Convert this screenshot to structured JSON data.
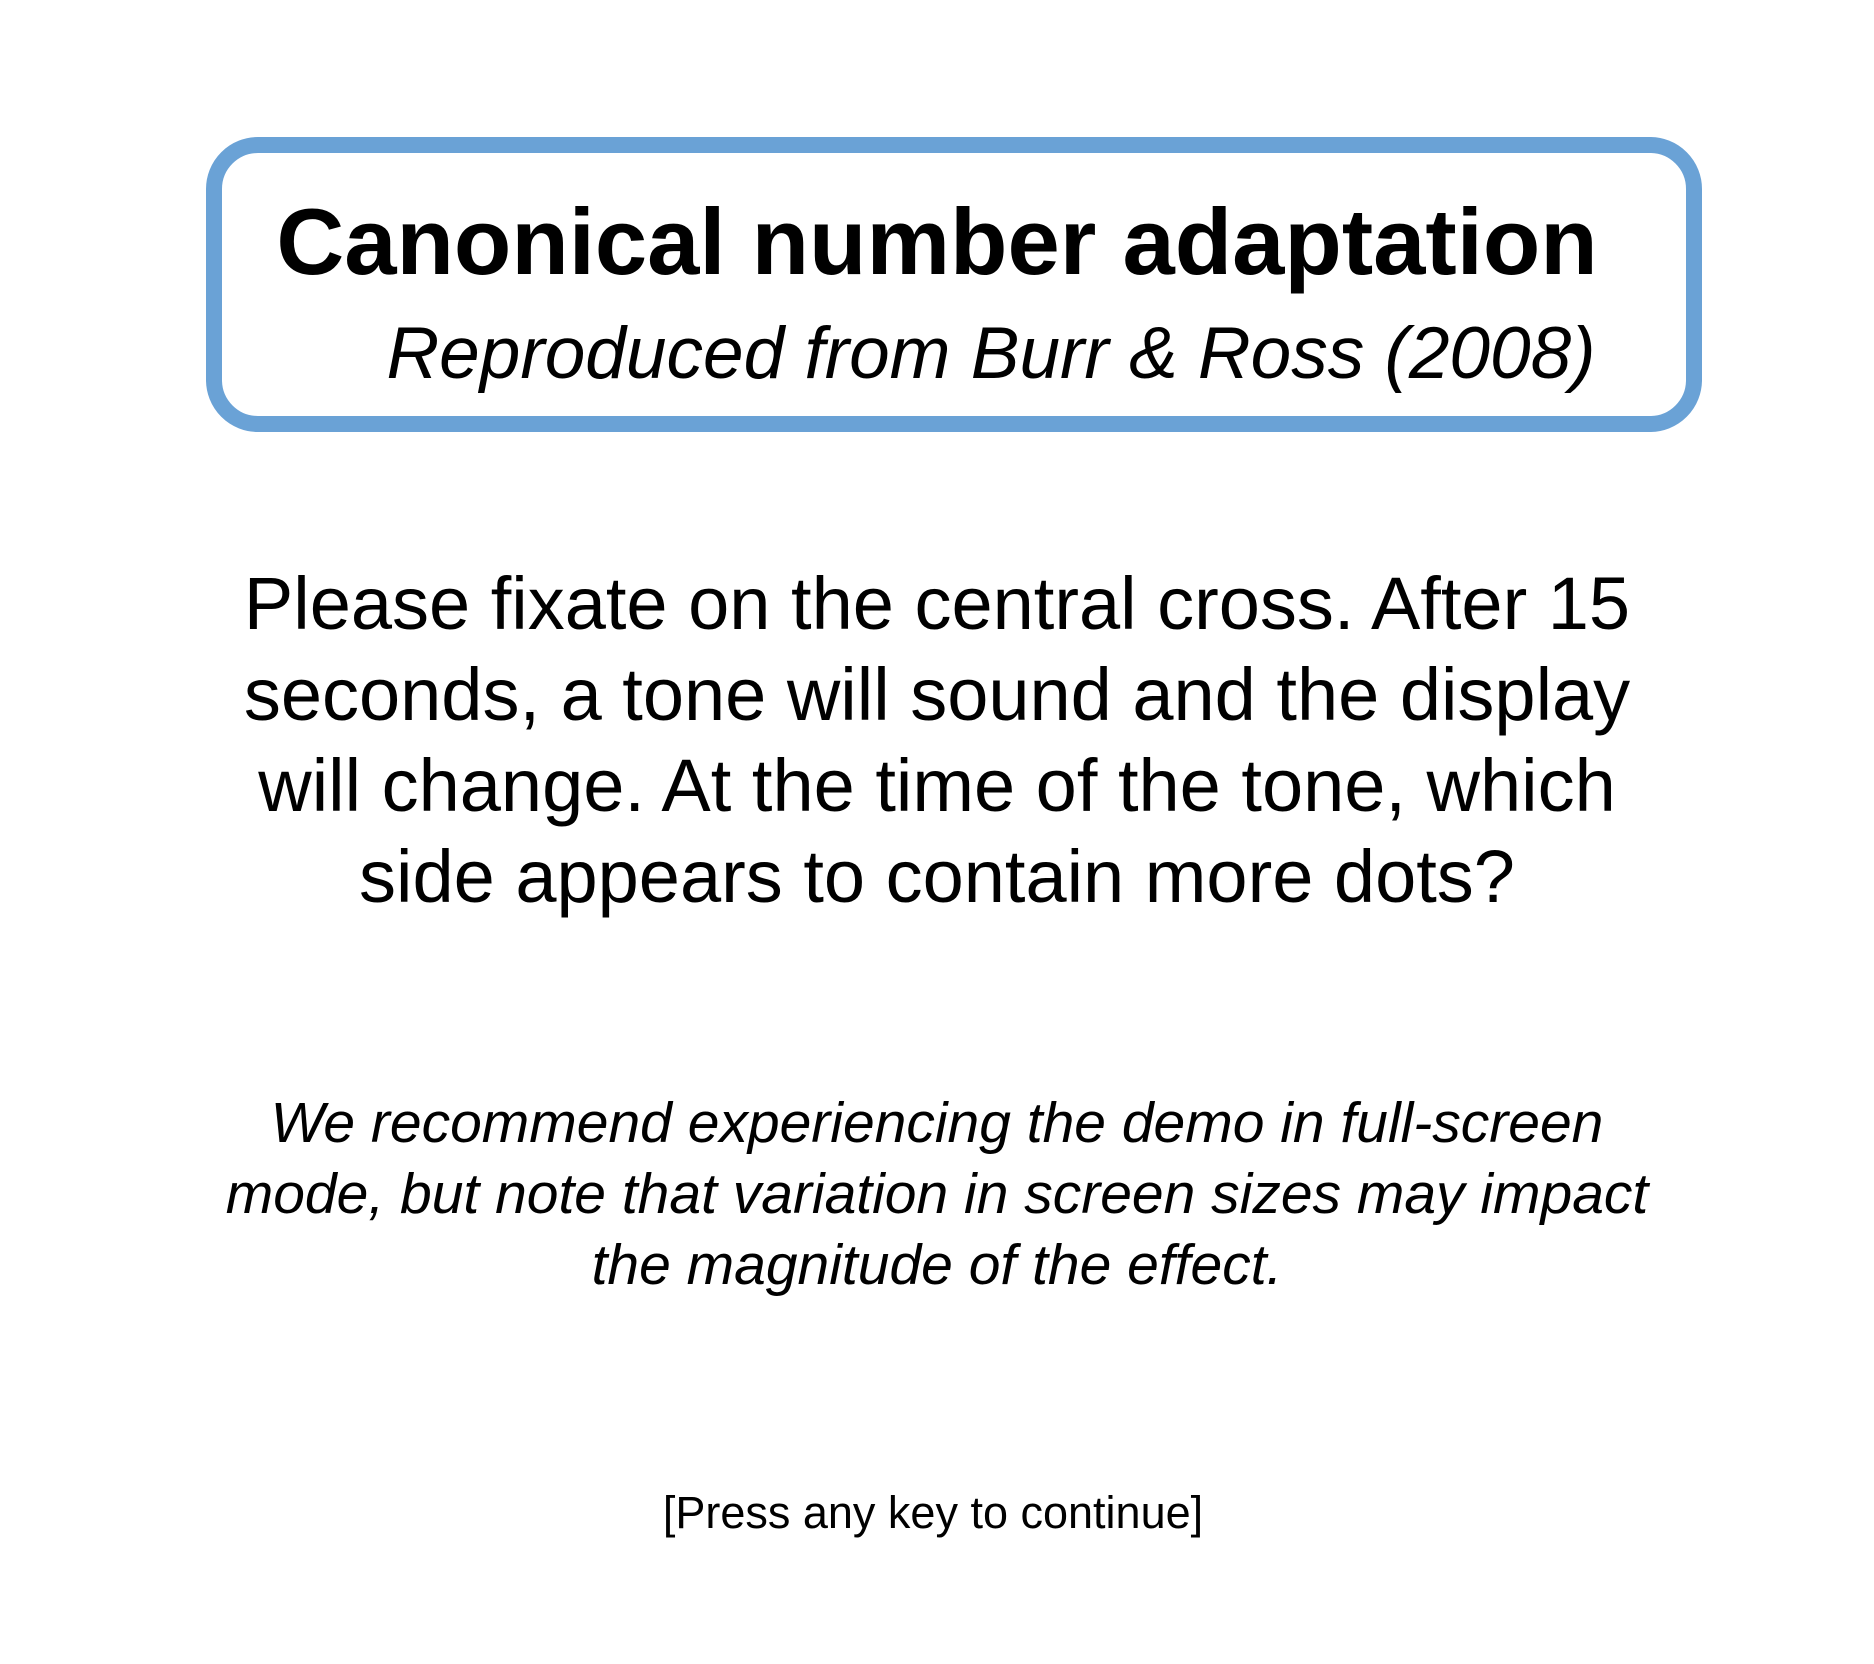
{
  "header": {
    "title": "Canonical number adaptation",
    "subtitle": "Reproduced from Burr & Ross (2008)",
    "border_color": "#6aa2d6"
  },
  "instructions": "Please fixate on the central cross. After 15 seconds, a tone will sound and the display will change. At the time of the tone, which side appears to contain more dots?",
  "note": "We recommend experiencing the demo in full-screen mode, but note that variation in screen sizes may impact the magnitude of the effect.",
  "continue_prompt": "[Press any key to continue]"
}
